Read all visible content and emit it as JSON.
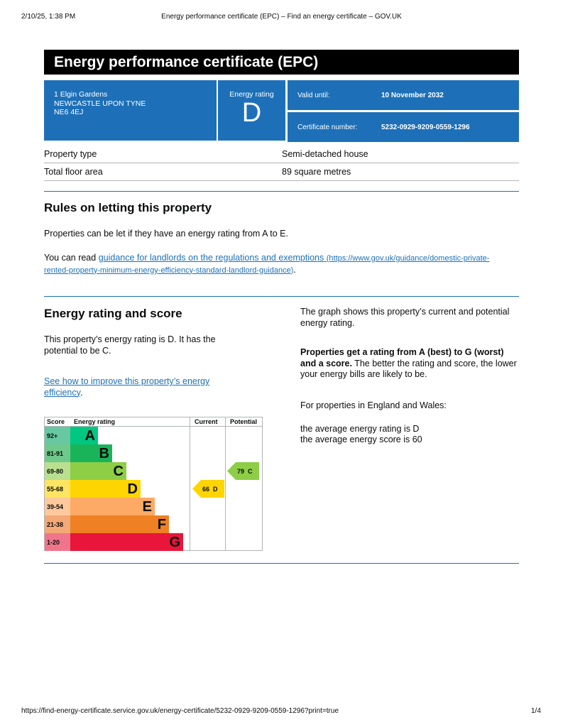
{
  "print_header": {
    "datetime": "2/10/25, 1:38 PM",
    "title": "Energy performance certificate (EPC) – Find an energy certificate – GOV.UK"
  },
  "header": {
    "title": "Energy performance certificate (EPC)"
  },
  "address": {
    "line1": "1 Elgin Gardens",
    "line2": "NEWCASTLE UPON TYNE",
    "line3": "NE6 4EJ"
  },
  "rating_box": {
    "label": "Energy rating",
    "value": "D"
  },
  "valid": {
    "label": "Valid until:",
    "value": "10 November 2032"
  },
  "certificate": {
    "label": "Certificate number:",
    "value": "5232-0929-9209-0559-1296"
  },
  "property": [
    {
      "k": "Property type",
      "v": "Semi-detached house"
    },
    {
      "k": "Total floor area",
      "v": "89 square metres"
    }
  ],
  "rules": {
    "title": "Rules on letting this property",
    "p1": "Properties can be let if they have an energy rating from A to E.",
    "p2_pre": "You can read ",
    "link": "guidance for landlords on the regulations and exemptions",
    "link_url": "(https://www.gov.uk/guidance/domestic-private-rented-property-minimum-energy-efficiency-standard-landlord-guidance)",
    "p2_post": "."
  },
  "rating": {
    "title": "Energy rating and score",
    "p1": "This property’s energy rating is D. It has the potential to be C.",
    "link": "See how to improve this property’s energy efficiency",
    "link_post": ".",
    "r1": "The graph shows this property’s current and potential energy rating.",
    "r2_bold": "Properties get a rating from A (best) to G (worst) and a score.",
    "r2": " The better the rating and score, the lower your energy bills are likely to be.",
    "r3": "For properties in England and Wales:",
    "r4": "the average energy rating is D",
    "r5": "the average energy score is 60"
  },
  "chart_data": {
    "type": "bar",
    "headers": [
      "Score",
      "Energy rating",
      "Current",
      "Potential"
    ],
    "bands": [
      {
        "score": "92+",
        "letter": "A",
        "color": "#00c781",
        "score_bg": "#67c8a1"
      },
      {
        "score": "81-91",
        "letter": "B",
        "color": "#19b459",
        "score_bg": "#6fc98b"
      },
      {
        "score": "69-80",
        "letter": "C",
        "color": "#8dce46",
        "score_bg": "#b9e08f"
      },
      {
        "score": "55-68",
        "letter": "D",
        "color": "#ffd500",
        "score_bg": "#ffe462"
      },
      {
        "score": "39-54",
        "letter": "E",
        "color": "#fcaa65",
        "score_bg": "#fdc99b"
      },
      {
        "score": "21-38",
        "letter": "F",
        "color": "#ef8023",
        "score_bg": "#f4a976"
      },
      {
        "score": "1-20",
        "letter": "G",
        "color": "#e9153b",
        "score_bg": "#f0758a"
      }
    ],
    "current": {
      "score": 66,
      "letter": "D",
      "label": "66  D"
    },
    "potential": {
      "score": 79,
      "letter": "C",
      "label": "79  C"
    }
  },
  "footer": {
    "url": "https://find-energy-certificate.service.gov.uk/energy-certificate/5232-0929-9209-0559-1296?print=true",
    "page": "1/4"
  }
}
